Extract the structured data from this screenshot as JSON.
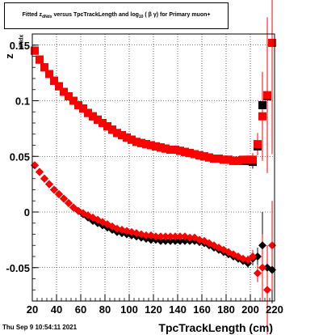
{
  "chart_data": {
    "type": "scatter",
    "title_parts": {
      "prefix": "Fitted  z",
      "z_sub": "dNdx",
      "middle": "  versus TpcTrackLength and log",
      "log_sub": "10",
      "suffix": " ( β γ) for Primary muon+"
    },
    "xlabel": "TpcTrackLength (cm)",
    "ylabel": "z",
    "ylabel_sub": "dNdx",
    "xlim": [
      20,
      220
    ],
    "ylim": [
      -0.08,
      0.16
    ],
    "xticks": [
      20,
      40,
      60,
      80,
      100,
      120,
      140,
      160,
      180,
      200,
      220
    ],
    "yticks": [
      -0.05,
      0,
      0.05,
      0.1,
      0.15
    ],
    "ytick_labels": [
      "-0.05",
      "0",
      "0.05",
      "0.1",
      "0.15"
    ],
    "grid": true,
    "series": [
      {
        "marker": "square",
        "color": "#000000",
        "x": [
          22,
          26,
          30,
          34,
          38,
          42,
          46,
          50,
          54,
          58,
          62,
          66,
          70,
          74,
          78,
          82,
          86,
          90,
          94,
          98,
          102,
          106,
          110,
          114,
          118,
          122,
          126,
          130,
          134,
          138,
          142,
          146,
          150,
          154,
          158,
          162,
          166,
          170,
          174,
          178,
          182,
          186,
          190,
          194,
          198,
          202,
          206,
          210,
          214,
          218
        ],
        "y": [
          0.145,
          0.137,
          0.13,
          0.124,
          0.118,
          0.113,
          0.108,
          0.104,
          0.1,
          0.096,
          0.093,
          0.089,
          0.086,
          0.083,
          0.08,
          0.077,
          0.074,
          0.071,
          0.069,
          0.067,
          0.065,
          0.063,
          0.062,
          0.061,
          0.06,
          0.059,
          0.058,
          0.057,
          0.056,
          0.056,
          0.055,
          0.054,
          0.053,
          0.052,
          0.051,
          0.05,
          0.049,
          0.048,
          0.048,
          0.047,
          0.047,
          0.046,
          0.046,
          0.046,
          0.046,
          0.045,
          0.059,
          0.096,
          0.104,
          0.152
        ],
        "err": [
          0,
          0,
          0,
          0,
          0,
          0,
          0,
          0,
          0,
          0,
          0,
          0,
          0,
          0,
          0,
          0,
          0,
          0,
          0,
          0,
          0,
          0,
          0,
          0,
          0,
          0,
          0,
          0,
          0,
          0,
          0,
          0,
          0,
          0,
          0,
          0,
          0,
          0,
          0,
          0,
          0,
          0,
          0.003,
          0.003,
          0.004,
          0.006,
          0.008,
          0.025,
          0.05,
          0.09
        ]
      },
      {
        "marker": "square",
        "color": "#ff0000",
        "x": [
          22,
          26,
          30,
          34,
          38,
          42,
          46,
          50,
          54,
          58,
          62,
          66,
          70,
          74,
          78,
          82,
          86,
          90,
          94,
          98,
          102,
          106,
          110,
          114,
          118,
          122,
          126,
          130,
          134,
          138,
          142,
          146,
          150,
          154,
          158,
          162,
          166,
          170,
          174,
          178,
          182,
          186,
          190,
          194,
          198,
          202,
          206,
          210,
          214,
          218
        ],
        "y": [
          0.145,
          0.137,
          0.13,
          0.124,
          0.118,
          0.113,
          0.108,
          0.104,
          0.1,
          0.096,
          0.093,
          0.089,
          0.086,
          0.083,
          0.08,
          0.077,
          0.074,
          0.071,
          0.069,
          0.067,
          0.065,
          0.063,
          0.062,
          0.061,
          0.06,
          0.059,
          0.058,
          0.057,
          0.056,
          0.056,
          0.055,
          0.054,
          0.053,
          0.052,
          0.051,
          0.05,
          0.049,
          0.048,
          0.048,
          0.047,
          0.047,
          0.046,
          0.046,
          0.047,
          0.047,
          0.047,
          0.061,
          0.086,
          0.105,
          0.152
        ],
        "err": [
          0,
          0,
          0,
          0,
          0,
          0,
          0,
          0,
          0,
          0,
          0,
          0,
          0,
          0,
          0,
          0,
          0,
          0,
          0,
          0,
          0,
          0,
          0,
          0,
          0,
          0,
          0,
          0,
          0,
          0,
          0,
          0,
          0,
          0,
          0,
          0,
          0,
          0,
          0,
          0,
          0,
          0,
          0.003,
          0.003,
          0.004,
          0.006,
          0.01,
          0.04,
          0.07,
          0.1
        ]
      },
      {
        "marker": "diamond",
        "color": "#000000",
        "x": [
          22,
          26,
          30,
          34,
          38,
          42,
          46,
          50,
          54,
          58,
          62,
          66,
          70,
          74,
          78,
          82,
          86,
          90,
          94,
          98,
          102,
          106,
          110,
          114,
          118,
          122,
          126,
          130,
          134,
          138,
          142,
          146,
          150,
          154,
          158,
          162,
          166,
          170,
          174,
          178,
          182,
          186,
          190,
          194,
          198,
          202,
          206,
          210,
          214,
          218
        ],
        "y": [
          0.042,
          0.036,
          0.03,
          0.025,
          0.02,
          0.016,
          0.012,
          0.008,
          0.004,
          0.001,
          -0.002,
          -0.005,
          -0.008,
          -0.01,
          -0.012,
          -0.014,
          -0.016,
          -0.018,
          -0.019,
          -0.02,
          -0.021,
          -0.022,
          -0.023,
          -0.024,
          -0.025,
          -0.025,
          -0.026,
          -0.026,
          -0.026,
          -0.026,
          -0.026,
          -0.026,
          -0.026,
          -0.026,
          -0.027,
          -0.028,
          -0.03,
          -0.032,
          -0.034,
          -0.036,
          -0.038,
          -0.04,
          -0.042,
          -0.044,
          -0.046,
          -0.042,
          -0.04,
          -0.03,
          -0.05,
          -0.052
        ],
        "err": [
          0,
          0,
          0,
          0,
          0,
          0,
          0,
          0,
          0,
          0,
          0,
          0,
          0,
          0,
          0,
          0,
          0,
          0,
          0,
          0,
          0,
          0,
          0,
          0,
          0,
          0,
          0,
          0,
          0,
          0,
          0,
          0,
          0,
          0,
          0,
          0,
          0,
          0,
          0,
          0,
          0,
          0,
          0.003,
          0.003,
          0.004,
          0.006,
          0.008,
          0.03,
          0.02,
          0.03
        ]
      },
      {
        "marker": "diamond",
        "color": "#ff0000",
        "x": [
          22,
          26,
          30,
          34,
          38,
          42,
          46,
          50,
          54,
          58,
          62,
          66,
          70,
          74,
          78,
          82,
          86,
          90,
          94,
          98,
          102,
          106,
          110,
          114,
          118,
          122,
          126,
          130,
          134,
          138,
          142,
          146,
          150,
          154,
          158,
          162,
          166,
          170,
          174,
          178,
          182,
          186,
          190,
          194,
          198,
          202,
          206,
          210,
          214,
          218
        ],
        "y": [
          0.042,
          0.036,
          0.03,
          0.025,
          0.02,
          0.016,
          0.012,
          0.008,
          0.004,
          0.001,
          -0.001,
          -0.003,
          -0.005,
          -0.007,
          -0.009,
          -0.011,
          -0.013,
          -0.015,
          -0.016,
          -0.017,
          -0.018,
          -0.019,
          -0.02,
          -0.021,
          -0.021,
          -0.022,
          -0.022,
          -0.022,
          -0.022,
          -0.022,
          -0.022,
          -0.022,
          -0.023,
          -0.023,
          -0.025,
          -0.026,
          -0.028,
          -0.03,
          -0.032,
          -0.034,
          -0.036,
          -0.038,
          -0.04,
          -0.042,
          -0.043,
          -0.04,
          -0.055,
          -0.05,
          -0.07,
          -0.03
        ],
        "err": [
          0,
          0,
          0,
          0,
          0,
          0,
          0,
          0,
          0,
          0,
          0,
          0,
          0,
          0,
          0,
          0,
          0,
          0,
          0,
          0,
          0,
          0,
          0,
          0,
          0,
          0,
          0,
          0,
          0,
          0,
          0,
          0,
          0,
          0,
          0,
          0,
          0,
          0,
          0,
          0,
          0,
          0,
          0.003,
          0.003,
          0.004,
          0.006,
          0.008,
          0.03,
          0.04,
          0.04
        ]
      }
    ]
  },
  "footer": {
    "date": "Thu Sep  9 10:54:11 2021"
  }
}
